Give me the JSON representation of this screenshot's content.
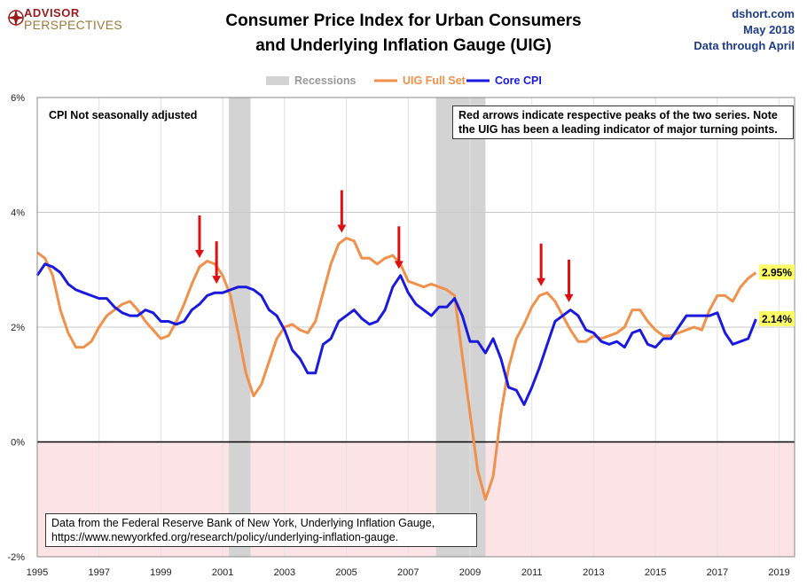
{
  "header": {
    "logo_line1": "ADVISOR",
    "logo_line2": "PERSPECTIVES",
    "title_line1": "Consumer Price Index for Urban Consumers",
    "title_line2": "and Underlying Inflation Gauge (UIG)",
    "site": "dshort.com",
    "date": "May 2018",
    "data_through": "Data through April"
  },
  "annotations": {
    "cpi_note": "CPI Not seasonally adjusted",
    "arrows_note_line1": "Red arrows indicate respective peaks of the two series. Note",
    "arrows_note_line2": "the UIG has been a leading indicator of major turning points.",
    "source_line1": "Data from the Federal Reserve Bank of New York, Underlying Inflation Gauge,",
    "source_line2": "https://www.newyorkfed.org/research/policy/underlying-inflation-gauge."
  },
  "chart_data": {
    "type": "line",
    "title": "Consumer Price Index for Urban Consumers and Underlying Inflation Gauge (UIG)",
    "xlim": [
      1995,
      2019.5
    ],
    "ylim": [
      -2,
      6
    ],
    "x_ticks": [
      "1995",
      "1997",
      "1999",
      "2001",
      "2003",
      "2005",
      "2007",
      "2009",
      "2011",
      "2013",
      "2015",
      "2017",
      "2019"
    ],
    "y_ticks": [
      "6%",
      "4%",
      "2%",
      "0%",
      "-2%"
    ],
    "recessions": [
      [
        2001.2,
        2001.9
      ],
      [
        2007.9,
        2009.5
      ]
    ],
    "legend": [
      "Recessions",
      "UIG Full Set",
      "Core CPI"
    ],
    "colors": {
      "uig": "#f0904a",
      "cpi": "#1a1adf",
      "recession": "#d3d3d3",
      "arrow": "#e01010",
      "zero_line": "#000000",
      "below_zero": "#fce4e6"
    },
    "end_labels": {
      "uig": "2.95%",
      "cpi": "2.14%"
    },
    "series": [
      {
        "name": "UIG Full Set",
        "points": [
          [
            1995.0,
            3.3
          ],
          [
            1995.25,
            3.2
          ],
          [
            1995.5,
            2.9
          ],
          [
            1995.75,
            2.3
          ],
          [
            1996.0,
            1.9
          ],
          [
            1996.25,
            1.65
          ],
          [
            1996.5,
            1.65
          ],
          [
            1996.75,
            1.75
          ],
          [
            1997.0,
            2.0
          ],
          [
            1997.25,
            2.2
          ],
          [
            1997.5,
            2.3
          ],
          [
            1997.75,
            2.4
          ],
          [
            1998.0,
            2.45
          ],
          [
            1998.25,
            2.3
          ],
          [
            1998.5,
            2.1
          ],
          [
            1998.75,
            1.95
          ],
          [
            1999.0,
            1.8
          ],
          [
            1999.25,
            1.85
          ],
          [
            1999.5,
            2.1
          ],
          [
            1999.75,
            2.4
          ],
          [
            2000.0,
            2.75
          ],
          [
            2000.25,
            3.05
          ],
          [
            2000.5,
            3.15
          ],
          [
            2000.75,
            3.1
          ],
          [
            2001.0,
            2.9
          ],
          [
            2001.25,
            2.55
          ],
          [
            2001.5,
            1.9
          ],
          [
            2001.75,
            1.2
          ],
          [
            2002.0,
            0.8
          ],
          [
            2002.25,
            1.0
          ],
          [
            2002.5,
            1.4
          ],
          [
            2002.75,
            1.8
          ],
          [
            2003.0,
            2.0
          ],
          [
            2003.25,
            2.05
          ],
          [
            2003.5,
            1.95
          ],
          [
            2003.75,
            1.9
          ],
          [
            2004.0,
            2.1
          ],
          [
            2004.25,
            2.6
          ],
          [
            2004.5,
            3.1
          ],
          [
            2004.75,
            3.45
          ],
          [
            2005.0,
            3.55
          ],
          [
            2005.25,
            3.5
          ],
          [
            2005.5,
            3.2
          ],
          [
            2005.75,
            3.2
          ],
          [
            2006.0,
            3.1
          ],
          [
            2006.25,
            3.2
          ],
          [
            2006.5,
            3.25
          ],
          [
            2006.75,
            3.1
          ],
          [
            2007.0,
            2.8
          ],
          [
            2007.25,
            2.75
          ],
          [
            2007.5,
            2.7
          ],
          [
            2007.75,
            2.75
          ],
          [
            2008.0,
            2.7
          ],
          [
            2008.25,
            2.65
          ],
          [
            2008.5,
            2.55
          ],
          [
            2008.75,
            1.5
          ],
          [
            2009.0,
            0.5
          ],
          [
            2009.25,
            -0.5
          ],
          [
            2009.5,
            -1.0
          ],
          [
            2009.75,
            -0.6
          ],
          [
            2010.0,
            0.5
          ],
          [
            2010.25,
            1.3
          ],
          [
            2010.5,
            1.8
          ],
          [
            2010.75,
            2.05
          ],
          [
            2011.0,
            2.35
          ],
          [
            2011.25,
            2.55
          ],
          [
            2011.5,
            2.6
          ],
          [
            2011.75,
            2.45
          ],
          [
            2012.0,
            2.2
          ],
          [
            2012.25,
            1.95
          ],
          [
            2012.5,
            1.75
          ],
          [
            2012.75,
            1.75
          ],
          [
            2013.0,
            1.85
          ],
          [
            2013.25,
            1.8
          ],
          [
            2013.5,
            1.85
          ],
          [
            2013.75,
            1.9
          ],
          [
            2014.0,
            2.0
          ],
          [
            2014.25,
            2.3
          ],
          [
            2014.5,
            2.3
          ],
          [
            2014.75,
            2.1
          ],
          [
            2015.0,
            1.95
          ],
          [
            2015.25,
            1.85
          ],
          [
            2015.5,
            1.85
          ],
          [
            2015.75,
            1.9
          ],
          [
            2016.0,
            1.95
          ],
          [
            2016.25,
            2.0
          ],
          [
            2016.5,
            1.95
          ],
          [
            2016.75,
            2.3
          ],
          [
            2017.0,
            2.55
          ],
          [
            2017.25,
            2.55
          ],
          [
            2017.5,
            2.45
          ],
          [
            2017.75,
            2.7
          ],
          [
            2018.0,
            2.85
          ],
          [
            2018.25,
            2.95
          ]
        ]
      },
      {
        "name": "Core CPI",
        "points": [
          [
            1995.0,
            2.9
          ],
          [
            1995.25,
            3.1
          ],
          [
            1995.5,
            3.05
          ],
          [
            1995.75,
            2.95
          ],
          [
            1996.0,
            2.75
          ],
          [
            1996.25,
            2.65
          ],
          [
            1996.5,
            2.6
          ],
          [
            1996.75,
            2.55
          ],
          [
            1997.0,
            2.5
          ],
          [
            1997.25,
            2.5
          ],
          [
            1997.5,
            2.35
          ],
          [
            1997.75,
            2.25
          ],
          [
            1998.0,
            2.2
          ],
          [
            1998.25,
            2.2
          ],
          [
            1998.5,
            2.3
          ],
          [
            1998.75,
            2.25
          ],
          [
            1999.0,
            2.1
          ],
          [
            1999.25,
            2.1
          ],
          [
            1999.5,
            2.05
          ],
          [
            1999.75,
            2.1
          ],
          [
            2000.0,
            2.3
          ],
          [
            2000.25,
            2.4
          ],
          [
            2000.5,
            2.55
          ],
          [
            2000.75,
            2.6
          ],
          [
            2001.0,
            2.6
          ],
          [
            2001.25,
            2.65
          ],
          [
            2001.5,
            2.7
          ],
          [
            2001.75,
            2.7
          ],
          [
            2002.0,
            2.65
          ],
          [
            2002.25,
            2.55
          ],
          [
            2002.5,
            2.3
          ],
          [
            2002.75,
            2.2
          ],
          [
            2003.0,
            1.95
          ],
          [
            2003.25,
            1.6
          ],
          [
            2003.5,
            1.45
          ],
          [
            2003.75,
            1.2
          ],
          [
            2004.0,
            1.2
          ],
          [
            2004.25,
            1.7
          ],
          [
            2004.5,
            1.8
          ],
          [
            2004.75,
            2.1
          ],
          [
            2005.0,
            2.2
          ],
          [
            2005.25,
            2.3
          ],
          [
            2005.5,
            2.15
          ],
          [
            2005.75,
            2.05
          ],
          [
            2006.0,
            2.1
          ],
          [
            2006.25,
            2.3
          ],
          [
            2006.5,
            2.7
          ],
          [
            2006.75,
            2.9
          ],
          [
            2007.0,
            2.6
          ],
          [
            2007.25,
            2.4
          ],
          [
            2007.5,
            2.3
          ],
          [
            2007.75,
            2.2
          ],
          [
            2008.0,
            2.35
          ],
          [
            2008.25,
            2.35
          ],
          [
            2008.5,
            2.5
          ],
          [
            2008.75,
            2.2
          ],
          [
            2009.0,
            1.75
          ],
          [
            2009.25,
            1.75
          ],
          [
            2009.5,
            1.55
          ],
          [
            2009.75,
            1.8
          ],
          [
            2010.0,
            1.45
          ],
          [
            2010.25,
            0.95
          ],
          [
            2010.5,
            0.9
          ],
          [
            2010.75,
            0.65
          ],
          [
            2011.0,
            0.95
          ],
          [
            2011.25,
            1.3
          ],
          [
            2011.5,
            1.7
          ],
          [
            2011.75,
            2.1
          ],
          [
            2012.0,
            2.2
          ],
          [
            2012.25,
            2.3
          ],
          [
            2012.5,
            2.2
          ],
          [
            2012.75,
            1.95
          ],
          [
            2013.0,
            1.9
          ],
          [
            2013.25,
            1.75
          ],
          [
            2013.5,
            1.7
          ],
          [
            2013.75,
            1.75
          ],
          [
            2014.0,
            1.65
          ],
          [
            2014.25,
            1.9
          ],
          [
            2014.5,
            1.95
          ],
          [
            2014.75,
            1.7
          ],
          [
            2015.0,
            1.65
          ],
          [
            2015.25,
            1.8
          ],
          [
            2015.5,
            1.8
          ],
          [
            2015.75,
            2.0
          ],
          [
            2016.0,
            2.2
          ],
          [
            2016.25,
            2.2
          ],
          [
            2016.5,
            2.2
          ],
          [
            2016.75,
            2.2
          ],
          [
            2017.0,
            2.25
          ],
          [
            2017.25,
            1.9
          ],
          [
            2017.5,
            1.7
          ],
          [
            2017.75,
            1.75
          ],
          [
            2018.0,
            1.8
          ],
          [
            2018.25,
            2.14
          ]
        ]
      }
    ],
    "arrows": [
      [
        2000.25,
        "uig"
      ],
      [
        2000.8,
        "cpi"
      ],
      [
        2004.85,
        "uig"
      ],
      [
        2006.7,
        "cpi"
      ],
      [
        2011.3,
        "uig"
      ],
      [
        2012.2,
        "cpi"
      ]
    ]
  }
}
